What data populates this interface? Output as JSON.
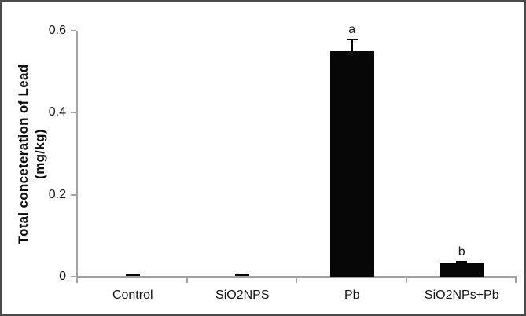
{
  "figure": {
    "background": "#ffffff",
    "border_color": "#4a4a4a"
  },
  "chart_data": {
    "type": "bar",
    "title": "",
    "ylabel_line1": "Total conceteration of Lead",
    "ylabel_line2": "(mg/kg)",
    "xlabel": "",
    "ylim": [
      0,
      0.6
    ],
    "yticks": [
      0,
      0.2,
      0.4,
      0.6
    ],
    "ytick_labels": [
      "0",
      "0.2",
      "0.4",
      "0.6"
    ],
    "grid": false,
    "legend_position": "none",
    "bar_color": "#060606",
    "axis_color": "#a3a3a3",
    "categories": [
      "Control",
      "SiO2NPS",
      "Pb",
      "SiO2NPs+Pb"
    ],
    "values": [
      0.001,
      0.001,
      0.55,
      0.033
    ],
    "errors": [
      0,
      0,
      0.03,
      0.005
    ],
    "sig_letters": [
      "",
      "",
      "a",
      "b"
    ]
  }
}
